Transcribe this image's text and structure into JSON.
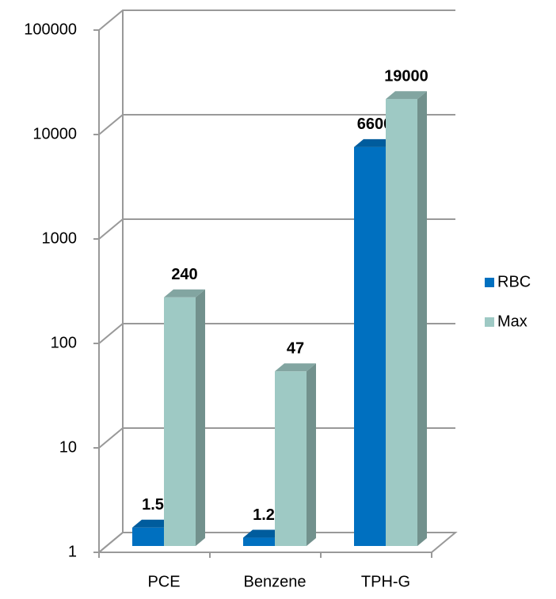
{
  "chart_data": {
    "type": "bar3d",
    "categories": [
      "PCE",
      "Benzene",
      "TPH-G"
    ],
    "series": [
      {
        "name": "RBC",
        "color": "#0070c0",
        "values": [
          1.5,
          1.2,
          6600
        ]
      },
      {
        "name": "Max",
        "color": "#9ec9c4",
        "values": [
          240,
          47,
          19000
        ]
      }
    ],
    "ylim": [
      1,
      100000
    ],
    "yticks": [
      1,
      10,
      100,
      1000,
      10000,
      100000
    ],
    "log_scale": true,
    "grid": true,
    "legend": "right"
  }
}
